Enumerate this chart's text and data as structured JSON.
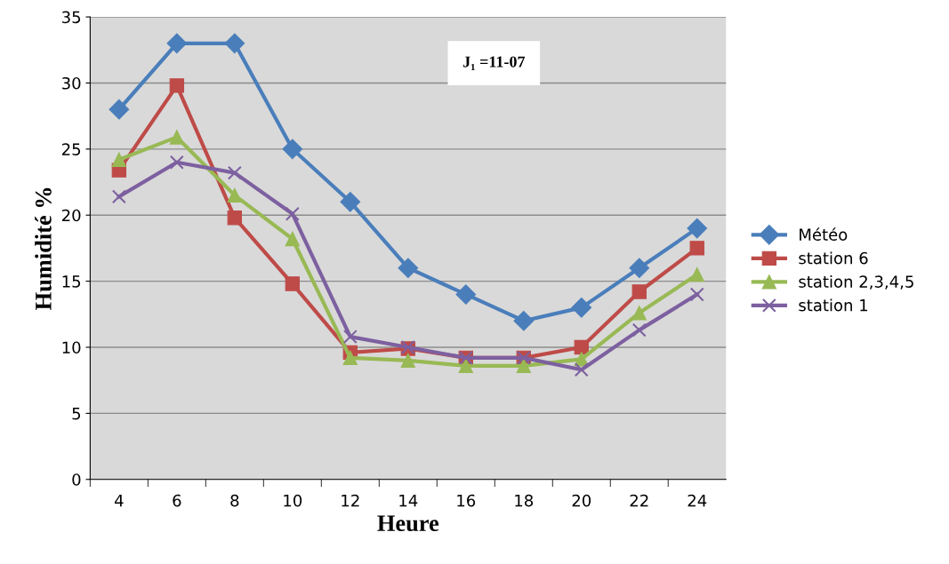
{
  "chart_data": {
    "type": "line",
    "xlabel": "Heure",
    "ylabel": "Humidité %",
    "categories": [
      "4",
      "6",
      "8",
      "10",
      "12",
      "14",
      "16",
      "18",
      "20",
      "22",
      "24"
    ],
    "series": [
      {
        "name": "Météo",
        "color": "#4a7ebb",
        "marker": "diamond",
        "values": [
          28,
          33,
          33,
          25,
          21,
          16,
          14,
          12,
          13,
          16,
          19
        ]
      },
      {
        "name": "station 6",
        "color": "#be4b48",
        "marker": "square",
        "values": [
          23.4,
          29.8,
          19.8,
          14.8,
          9.6,
          9.9,
          9.2,
          9.2,
          10.0,
          14.2,
          17.5
        ]
      },
      {
        "name": "station 2,3,4,5",
        "color": "#98b954",
        "marker": "triangle",
        "values": [
          24.2,
          25.9,
          21.5,
          18.2,
          9.2,
          9.0,
          8.6,
          8.6,
          9.1,
          12.6,
          15.5
        ]
      },
      {
        "name": "station 1",
        "color": "#7d60a0",
        "marker": "cross",
        "values": [
          21.4,
          24.0,
          23.2,
          20.1,
          10.8,
          10.0,
          9.2,
          9.2,
          8.3,
          11.3,
          14.0
        ]
      }
    ],
    "ylim": [
      0,
      35
    ],
    "yticks": [
      0,
      5,
      10,
      15,
      20,
      25,
      30,
      35
    ],
    "grid": "y",
    "legend": "right",
    "annotations": [
      "J₁ =11-07"
    ]
  }
}
